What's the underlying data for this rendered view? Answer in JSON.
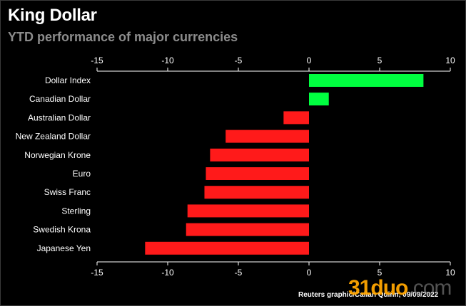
{
  "header": {
    "title": "King Dollar",
    "subtitle": "YTD performance of major currencies"
  },
  "chart_data": {
    "type": "bar",
    "orientation": "horizontal",
    "title": "King Dollar",
    "subtitle": "YTD performance of major currencies",
    "categories": [
      "Dollar Index",
      "Canadian Dollar",
      "Australian Dollar",
      "New Zealand Dollar",
      "Norwegian Krone",
      "Euro",
      "Swiss Franc",
      "Sterling",
      "Swedish Krona",
      "Japanese Yen"
    ],
    "values": [
      8.1,
      1.4,
      -1.8,
      -5.9,
      -7.0,
      -7.3,
      -7.4,
      -8.6,
      -8.7,
      -11.6
    ],
    "xlim": [
      -15,
      10
    ],
    "x_ticks": [
      -15,
      -10,
      -5,
      0,
      5,
      10
    ],
    "x_tick_labels": [
      "-15",
      "-10",
      "-5",
      "0",
      "5",
      "10"
    ],
    "xlabel": "",
    "ylabel": "",
    "grid": false,
    "colors": {
      "positive": "#00ff40",
      "negative": "#ff1a1a"
    }
  },
  "footer": {
    "source": "Reuters graphic/Callan Quinn, 09/09/2022"
  },
  "watermark": {
    "brand": "31duo",
    "suffix": ".com"
  }
}
